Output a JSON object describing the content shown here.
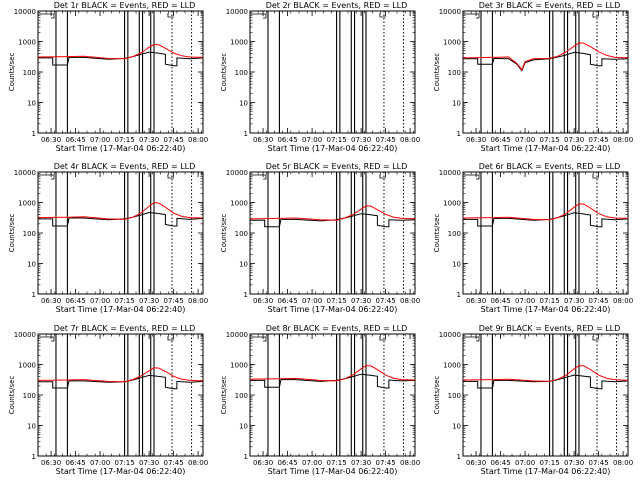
{
  "chart_data": [
    {
      "type": "line",
      "title": "Det 1r BLACK = Events, RED = LLD",
      "xlabel": "Start Time (17-Mar-04 06:22:40)",
      "ylabel": "Counts/sec",
      "yscale": "log",
      "ylim": [
        1,
        10000
      ],
      "xlim": [
        "06:22",
        "08:03"
      ],
      "xticks": [
        "06:30",
        "06:45",
        "07:00",
        "07:15",
        "07:30",
        "07:45",
        "08:00"
      ],
      "yticks": [
        "1",
        "10",
        "100",
        "1000",
        "10000"
      ],
      "series": [
        {
          "color": "#000000",
          "x": [
            "06:22",
            "06:31",
            "06:31",
            "06:40",
            "06:41",
            "06:50",
            "07:05",
            "07:15",
            "07:20",
            "07:25",
            "07:30",
            "07:35",
            "07:40",
            "07:40",
            "07:45",
            "07:47",
            "07:47",
            "07:55",
            "08:03"
          ],
          "values": [
            290,
            290,
            170,
            170,
            300,
            300,
            260,
            280,
            320,
            380,
            450,
            420,
            380,
            180,
            160,
            160,
            290,
            270,
            290
          ]
        },
        {
          "color": "#ff0000",
          "x": [
            "06:22",
            "06:40",
            "06:50",
            "07:05",
            "07:15",
            "07:20",
            "07:25",
            "07:30",
            "07:33",
            "07:36",
            "07:40",
            "07:45",
            "07:50",
            "07:55",
            "08:03"
          ],
          "values": [
            310,
            320,
            330,
            280,
            270,
            320,
            420,
            650,
            800,
            780,
            600,
            420,
            340,
            310,
            300
          ]
        }
      ]
    },
    {
      "type": "line",
      "title": "Det 2r BLACK = Events, RED = LLD",
      "xlabel": "Start Time (17-Mar-04 06:22:40)",
      "ylabel": "Counts/sec",
      "yscale": "log",
      "ylim": [
        1,
        10000
      ],
      "xlim": [
        "06:22",
        "08:03"
      ],
      "xticks": [
        "06:30",
        "06:45",
        "07:00",
        "07:15",
        "07:30",
        "07:45",
        "08:00"
      ],
      "yticks": [
        "1",
        "10",
        "100",
        "1000",
        "10000"
      ],
      "series": []
    },
    {
      "type": "line",
      "title": "Det 3r BLACK = Events, RED = LLD",
      "xlabel": "Start Time (17-Mar-04 06:22:40)",
      "ylabel": "Counts/sec",
      "yscale": "log",
      "ylim": [
        1,
        10000
      ],
      "xlim": [
        "06:22",
        "08:03"
      ],
      "xticks": [
        "06:30",
        "06:45",
        "07:00",
        "07:15",
        "07:30",
        "07:45",
        "08:00"
      ],
      "yticks": [
        "1",
        "10",
        "100",
        "1000",
        "10000"
      ],
      "series": [
        {
          "color": "#000000",
          "x": [
            "06:22",
            "06:31",
            "06:31",
            "06:40",
            "06:41",
            "06:50",
            "06:55",
            "06:58",
            "07:00",
            "07:05",
            "07:15",
            "07:20",
            "07:25",
            "07:30",
            "07:35",
            "07:40",
            "07:40",
            "07:45",
            "07:47",
            "07:47",
            "07:55",
            "08:03"
          ],
          "values": [
            270,
            270,
            180,
            180,
            280,
            270,
            180,
            110,
            200,
            250,
            270,
            310,
            360,
            440,
            410,
            370,
            180,
            160,
            160,
            270,
            260,
            270
          ]
        },
        {
          "color": "#ff0000",
          "x": [
            "06:22",
            "06:40",
            "06:50",
            "06:55",
            "06:58",
            "07:00",
            "07:05",
            "07:15",
            "07:20",
            "07:25",
            "07:30",
            "07:33",
            "07:36",
            "07:40",
            "07:45",
            "07:50",
            "07:55",
            "08:03"
          ],
          "values": [
            290,
            300,
            310,
            190,
            120,
            220,
            270,
            280,
            330,
            450,
            700,
            900,
            880,
            680,
            460,
            350,
            300,
            290
          ]
        }
      ]
    },
    {
      "type": "line",
      "title": "Det 4r BLACK = Events, RED = LLD",
      "xlabel": "Start Time (17-Mar-04 06:22:40)",
      "ylabel": "Counts/sec",
      "yscale": "log",
      "ylim": [
        1,
        10000
      ],
      "xlim": [
        "06:22",
        "08:03"
      ],
      "xticks": [
        "06:30",
        "06:45",
        "07:00",
        "07:15",
        "07:30",
        "07:45",
        "08:00"
      ],
      "yticks": [
        "1",
        "10",
        "100",
        "1000",
        "10000"
      ],
      "series": [
        {
          "color": "#000000",
          "x": [
            "06:22",
            "06:31",
            "06:31",
            "06:40",
            "06:41",
            "06:50",
            "07:05",
            "07:15",
            "07:20",
            "07:25",
            "07:30",
            "07:35",
            "07:40",
            "07:40",
            "07:45",
            "07:47",
            "07:47",
            "07:55",
            "08:03"
          ],
          "values": [
            290,
            290,
            170,
            170,
            310,
            310,
            270,
            290,
            330,
            390,
            470,
            440,
            400,
            190,
            170,
            170,
            300,
            280,
            300
          ]
        },
        {
          "color": "#ff0000",
          "x": [
            "06:22",
            "06:40",
            "06:50",
            "07:05",
            "07:15",
            "07:20",
            "07:25",
            "07:30",
            "07:33",
            "07:36",
            "07:40",
            "07:45",
            "07:50",
            "07:55",
            "08:03"
          ],
          "values": [
            320,
            330,
            340,
            290,
            280,
            330,
            450,
            750,
            1000,
            950,
            700,
            450,
            350,
            320,
            310
          ]
        }
      ]
    },
    {
      "type": "line",
      "title": "Det 5r BLACK = Events, RED = LLD",
      "xlabel": "Start Time (17-Mar-04 06:22:40)",
      "ylabel": "Counts/sec",
      "yscale": "log",
      "ylim": [
        1,
        10000
      ],
      "xlim": [
        "06:22",
        "08:03"
      ],
      "xticks": [
        "06:30",
        "06:45",
        "07:00",
        "07:15",
        "07:30",
        "07:45",
        "08:00"
      ],
      "yticks": [
        "1",
        "10",
        "100",
        "1000",
        "10000"
      ],
      "series": [
        {
          "color": "#000000",
          "x": [
            "06:22",
            "06:31",
            "06:31",
            "06:40",
            "06:41",
            "06:50",
            "07:05",
            "07:15",
            "07:20",
            "07:25",
            "07:30",
            "07:35",
            "07:40",
            "07:40",
            "07:45",
            "07:47",
            "07:47",
            "07:55",
            "08:03"
          ],
          "values": [
            260,
            260,
            160,
            160,
            280,
            280,
            250,
            270,
            310,
            360,
            430,
            400,
            370,
            180,
            160,
            160,
            270,
            260,
            270
          ]
        },
        {
          "color": "#ff0000",
          "x": [
            "06:22",
            "06:40",
            "06:50",
            "07:05",
            "07:15",
            "07:20",
            "07:25",
            "07:30",
            "07:33",
            "07:36",
            "07:40",
            "07:45",
            "07:50",
            "07:55",
            "08:03"
          ],
          "values": [
            290,
            300,
            310,
            270,
            260,
            310,
            400,
            600,
            780,
            760,
            580,
            410,
            330,
            300,
            290
          ]
        }
      ]
    },
    {
      "type": "line",
      "title": "Det 6r BLACK = Events, RED = LLD",
      "xlabel": "Start Time (17-Mar-04 06:22:40)",
      "ylabel": "Counts/sec",
      "yscale": "log",
      "ylim": [
        1,
        10000
      ],
      "xlim": [
        "06:22",
        "08:03"
      ],
      "xticks": [
        "06:30",
        "06:45",
        "07:00",
        "07:15",
        "07:30",
        "07:45",
        "08:00"
      ],
      "yticks": [
        "1",
        "10",
        "100",
        "1000",
        "10000"
      ],
      "series": [
        {
          "color": "#000000",
          "x": [
            "06:22",
            "06:31",
            "06:31",
            "06:40",
            "06:41",
            "06:50",
            "07:05",
            "07:15",
            "07:20",
            "07:25",
            "07:30",
            "07:35",
            "07:40",
            "07:40",
            "07:45",
            "07:47",
            "07:47",
            "07:55",
            "08:03"
          ],
          "values": [
            280,
            280,
            170,
            170,
            300,
            300,
            260,
            280,
            320,
            380,
            460,
            430,
            390,
            180,
            160,
            160,
            290,
            270,
            290
          ]
        },
        {
          "color": "#ff0000",
          "x": [
            "06:22",
            "06:40",
            "06:50",
            "07:05",
            "07:15",
            "07:20",
            "07:25",
            "07:30",
            "07:33",
            "07:36",
            "07:40",
            "07:45",
            "07:50",
            "07:55",
            "08:03"
          ],
          "values": [
            310,
            320,
            330,
            280,
            270,
            320,
            430,
            700,
            900,
            880,
            660,
            440,
            340,
            310,
            300
          ]
        }
      ]
    },
    {
      "type": "line",
      "title": "Det 7r BLACK = Events, RED = LLD",
      "xlabel": "Start Time (17-Mar-04 06:22:40)",
      "ylabel": "Counts/sec",
      "yscale": "log",
      "ylim": [
        1,
        10000
      ],
      "xlim": [
        "06:22",
        "08:03"
      ],
      "xticks": [
        "06:30",
        "06:45",
        "07:00",
        "07:15",
        "07:30",
        "07:45",
        "08:00"
      ],
      "yticks": [
        "1",
        "10",
        "100",
        "1000",
        "10000"
      ],
      "series": [
        {
          "color": "#000000",
          "x": [
            "06:22",
            "06:31",
            "06:31",
            "06:40",
            "06:41",
            "06:50",
            "07:05",
            "07:15",
            "07:20",
            "07:25",
            "07:30",
            "07:35",
            "07:40",
            "07:40",
            "07:45",
            "07:47",
            "07:47",
            "07:55",
            "08:03"
          ],
          "values": [
            270,
            270,
            170,
            170,
            290,
            290,
            260,
            270,
            310,
            370,
            440,
            410,
            380,
            180,
            160,
            160,
            280,
            260,
            280
          ]
        },
        {
          "color": "#ff0000",
          "x": [
            "06:22",
            "06:40",
            "06:50",
            "07:05",
            "07:15",
            "07:20",
            "07:25",
            "07:30",
            "07:33",
            "07:36",
            "07:40",
            "07:45",
            "07:50",
            "07:55",
            "08:03"
          ],
          "values": [
            300,
            310,
            320,
            280,
            270,
            320,
            420,
            620,
            780,
            760,
            590,
            410,
            330,
            300,
            290
          ]
        }
      ]
    },
    {
      "type": "line",
      "title": "Det 8r BLACK = Events, RED = LLD",
      "xlabel": "Start Time (17-Mar-04 06:22:40)",
      "ylabel": "Counts/sec",
      "yscale": "log",
      "ylim": [
        1,
        10000
      ],
      "xlim": [
        "06:22",
        "08:03"
      ],
      "xticks": [
        "06:30",
        "06:45",
        "07:00",
        "07:15",
        "07:30",
        "07:45",
        "08:00"
      ],
      "yticks": [
        "1",
        "10",
        "100",
        "1000",
        "10000"
      ],
      "series": [
        {
          "color": "#000000",
          "x": [
            "06:22",
            "06:31",
            "06:31",
            "06:40",
            "06:41",
            "06:50",
            "07:05",
            "07:15",
            "07:20",
            "07:25",
            "07:30",
            "07:35",
            "07:40",
            "07:40",
            "07:45",
            "07:47",
            "07:47",
            "07:55",
            "08:03"
          ],
          "values": [
            300,
            300,
            180,
            180,
            320,
            320,
            280,
            300,
            340,
            400,
            480,
            450,
            410,
            190,
            170,
            170,
            310,
            290,
            300
          ]
        },
        {
          "color": "#ff0000",
          "x": [
            "06:22",
            "06:40",
            "06:50",
            "07:05",
            "07:15",
            "07:20",
            "07:25",
            "07:30",
            "07:33",
            "07:36",
            "07:40",
            "07:45",
            "07:50",
            "07:55",
            "08:03"
          ],
          "values": [
            330,
            340,
            350,
            300,
            290,
            340,
            460,
            720,
            920,
            900,
            680,
            450,
            350,
            320,
            310
          ]
        }
      ]
    },
    {
      "type": "line",
      "title": "Det 9r BLACK = Events, RED = LLD",
      "xlabel": "Start Time (17-Mar-04 06:22:40)",
      "ylabel": "Counts/sec",
      "yscale": "log",
      "ylim": [
        1,
        10000
      ],
      "xlim": [
        "06:22",
        "08:03"
      ],
      "xticks": [
        "06:30",
        "06:45",
        "07:00",
        "07:15",
        "07:30",
        "07:45",
        "08:00"
      ],
      "yticks": [
        "1",
        "10",
        "100",
        "1000",
        "10000"
      ],
      "series": [
        {
          "color": "#000000",
          "x": [
            "06:22",
            "06:31",
            "06:31",
            "06:40",
            "06:41",
            "06:50",
            "07:05",
            "07:15",
            "07:20",
            "07:25",
            "07:30",
            "07:35",
            "07:40",
            "07:40",
            "07:45",
            "07:47",
            "07:47",
            "07:55",
            "08:03"
          ],
          "values": [
            280,
            280,
            170,
            170,
            300,
            300,
            270,
            280,
            320,
            380,
            450,
            420,
            390,
            180,
            160,
            160,
            290,
            270,
            290
          ]
        },
        {
          "color": "#ff0000",
          "x": [
            "06:22",
            "06:40",
            "06:50",
            "07:05",
            "07:15",
            "07:20",
            "07:25",
            "07:30",
            "07:33",
            "07:36",
            "07:40",
            "07:45",
            "07:50",
            "07:55",
            "08:03"
          ],
          "values": [
            310,
            320,
            330,
            290,
            280,
            330,
            440,
            720,
            920,
            900,
            680,
            450,
            350,
            320,
            300
          ]
        }
      ]
    }
  ],
  "markers": {
    "solid_times": [
      "06:33",
      "06:40",
      "07:15",
      "07:17",
      "07:24",
      "07:26",
      "07:31",
      "07:33"
    ],
    "dotted_times": [
      "07:44",
      "07:56"
    ]
  }
}
